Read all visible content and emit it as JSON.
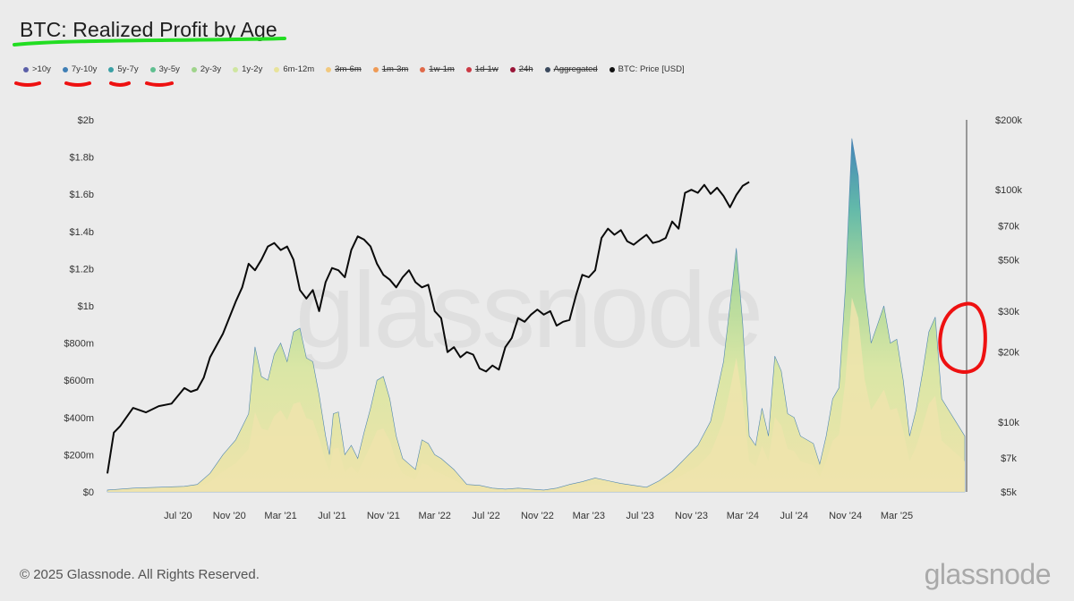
{
  "title": "BTC: Realized Profit by Age",
  "footer": "© 2025 Glassnode. All Rights Reserved.",
  "brand": "glassnode",
  "watermark": "glassnode",
  "legend": [
    {
      "label": ">10y",
      "color": "#5b5fa8",
      "active": true
    },
    {
      "label": "7y-10y",
      "color": "#3f7fb5",
      "active": true
    },
    {
      "label": "5y-7y",
      "color": "#3aa0a5",
      "active": true
    },
    {
      "label": "3y-5y",
      "color": "#5fbf90",
      "active": true
    },
    {
      "label": "2y-3y",
      "color": "#9fd48b",
      "active": true
    },
    {
      "label": "1y-2y",
      "color": "#cfe6a0",
      "active": true
    },
    {
      "label": "6m-12m",
      "color": "#e8e39a",
      "active": true
    },
    {
      "label": "3m-6m",
      "color": "#f2c97e",
      "active": false
    },
    {
      "label": "1m-3m",
      "color": "#ef9a55",
      "active": false
    },
    {
      "label": "1w-1m",
      "color": "#e06a4a",
      "active": false
    },
    {
      "label": "1d-1w",
      "color": "#cc3a45",
      "active": false
    },
    {
      "label": "24h",
      "color": "#9a1538",
      "active": false
    },
    {
      "label": "Aggregated",
      "color": "#3b4a5e",
      "active": false
    },
    {
      "label": "BTC: Price [USD]",
      "color": "#111111",
      "active": true
    }
  ],
  "annotations": {
    "title_underline_color": "#22dd22",
    "legend_underline_color": "#ee1111",
    "circle_color": "#ee1111"
  },
  "chart_data": {
    "type": "area",
    "x_ticks": [
      "Jul '20",
      "Nov '20",
      "Mar '21",
      "Jul '21",
      "Nov '21",
      "Mar '22",
      "Jul '22",
      "Nov '22",
      "Mar '23",
      "Jul '23",
      "Nov '23",
      "Mar '24",
      "Jul '24",
      "Nov '24",
      "Mar '25"
    ],
    "x_tick_pos": [
      5.5,
      9.5,
      13.5,
      17.5,
      21.5,
      25.5,
      29.5,
      33.5,
      37.5,
      41.5,
      45.5,
      49.5,
      53.5,
      57.5,
      61.5
    ],
    "x_range": [
      0,
      66.8
    ],
    "y_left": {
      "ticks": [
        "$0",
        "$200m",
        "$400m",
        "$600m",
        "$800m",
        "$1b",
        "$1.2b",
        "$1.4b",
        "$1.6b",
        "$1.8b",
        "$2b"
      ],
      "range_m": [
        0,
        2000
      ]
    },
    "y_right": {
      "scale": "log",
      "ticks": [
        "$5k",
        "$7k",
        "$10k",
        "$20k",
        "$30k",
        "$50k",
        "$70k",
        "$100k",
        "$200k"
      ],
      "tick_values": [
        5000,
        7000,
        10000,
        20000,
        30000,
        50000,
        70000,
        100000,
        200000
      ],
      "range": [
        5000,
        200000
      ]
    },
    "total_profit_m": [
      [
        0,
        10
      ],
      [
        2,
        20
      ],
      [
        4,
        25
      ],
      [
        6,
        30
      ],
      [
        7,
        40
      ],
      [
        8,
        100
      ],
      [
        9,
        200
      ],
      [
        10,
        280
      ],
      [
        11,
        420
      ],
      [
        11.5,
        780
      ],
      [
        12,
        620
      ],
      [
        12.5,
        600
      ],
      [
        13,
        740
      ],
      [
        13.5,
        800
      ],
      [
        14,
        700
      ],
      [
        14.5,
        860
      ],
      [
        15,
        880
      ],
      [
        15.5,
        720
      ],
      [
        16,
        700
      ],
      [
        16.5,
        520
      ],
      [
        17,
        300
      ],
      [
        17.3,
        200
      ],
      [
        17.6,
        420
      ],
      [
        18,
        430
      ],
      [
        18.5,
        200
      ],
      [
        19,
        250
      ],
      [
        19.5,
        180
      ],
      [
        20,
        320
      ],
      [
        20.5,
        450
      ],
      [
        21,
        600
      ],
      [
        21.5,
        620
      ],
      [
        22,
        500
      ],
      [
        22.5,
        300
      ],
      [
        23,
        180
      ],
      [
        23.5,
        150
      ],
      [
        24,
        120
      ],
      [
        24.5,
        280
      ],
      [
        25,
        260
      ],
      [
        25.5,
        200
      ],
      [
        26,
        180
      ],
      [
        27,
        120
      ],
      [
        28,
        40
      ],
      [
        29,
        35
      ],
      [
        30,
        20
      ],
      [
        31,
        15
      ],
      [
        32,
        20
      ],
      [
        33,
        15
      ],
      [
        34,
        10
      ],
      [
        35,
        20
      ],
      [
        36,
        40
      ],
      [
        37,
        55
      ],
      [
        38,
        75
      ],
      [
        39,
        60
      ],
      [
        40,
        45
      ],
      [
        41,
        35
      ],
      [
        42,
        25
      ],
      [
        43,
        60
      ],
      [
        44,
        110
      ],
      [
        45,
        180
      ],
      [
        46,
        250
      ],
      [
        47,
        380
      ],
      [
        48,
        700
      ],
      [
        48.5,
        1000
      ],
      [
        49,
        1310
      ],
      [
        49.5,
        900
      ],
      [
        50,
        300
      ],
      [
        50.5,
        250
      ],
      [
        51,
        450
      ],
      [
        51.5,
        300
      ],
      [
        52,
        730
      ],
      [
        52.5,
        650
      ],
      [
        53,
        420
      ],
      [
        53.5,
        400
      ],
      [
        54,
        300
      ],
      [
        55,
        260
      ],
      [
        55.5,
        150
      ],
      [
        56,
        300
      ],
      [
        56.5,
        500
      ],
      [
        57,
        560
      ],
      [
        57.5,
        1100
      ],
      [
        58,
        1900
      ],
      [
        58.5,
        1700
      ],
      [
        59,
        1100
      ],
      [
        59.5,
        800
      ],
      [
        60,
        900
      ],
      [
        60.5,
        1000
      ],
      [
        61,
        800
      ],
      [
        61.5,
        820
      ],
      [
        62,
        600
      ],
      [
        62.5,
        300
      ],
      [
        63,
        440
      ],
      [
        63.5,
        640
      ],
      [
        64,
        860
      ],
      [
        64.5,
        940
      ],
      [
        65,
        500
      ],
      [
        66.8,
        300
      ]
    ],
    "btc_price_usd": [
      [
        0,
        6000
      ],
      [
        0.5,
        9000
      ],
      [
        1,
        9600
      ],
      [
        2,
        11500
      ],
      [
        3,
        11000
      ],
      [
        4,
        11700
      ],
      [
        5,
        12000
      ],
      [
        6,
        14000
      ],
      [
        6.5,
        13500
      ],
      [
        7,
        13800
      ],
      [
        7.5,
        15500
      ],
      [
        8,
        19000
      ],
      [
        9,
        24000
      ],
      [
        10,
        33000
      ],
      [
        10.5,
        38000
      ],
      [
        11,
        48000
      ],
      [
        11.5,
        45000
      ],
      [
        12,
        50000
      ],
      [
        12.5,
        57000
      ],
      [
        13,
        59000
      ],
      [
        13.5,
        55000
      ],
      [
        14,
        57000
      ],
      [
        14.5,
        50000
      ],
      [
        15,
        37000
      ],
      [
        15.5,
        34000
      ],
      [
        16,
        37000
      ],
      [
        16.5,
        30000
      ],
      [
        17,
        40000
      ],
      [
        17.5,
        46000
      ],
      [
        18,
        45000
      ],
      [
        18.5,
        42000
      ],
      [
        19,
        55000
      ],
      [
        19.5,
        63000
      ],
      [
        20,
        61000
      ],
      [
        20.5,
        57000
      ],
      [
        21,
        48000
      ],
      [
        21.5,
        43000
      ],
      [
        22,
        41000
      ],
      [
        22.5,
        38000
      ],
      [
        23,
        42000
      ],
      [
        23.5,
        45000
      ],
      [
        24,
        40000
      ],
      [
        24.5,
        38000
      ],
      [
        25,
        39000
      ],
      [
        25.5,
        30000
      ],
      [
        26,
        28000
      ],
      [
        26.5,
        20000
      ],
      [
        27,
        21000
      ],
      [
        27.5,
        19000
      ],
      [
        28,
        20000
      ],
      [
        28.5,
        19500
      ],
      [
        29,
        17000
      ],
      [
        29.5,
        16500
      ],
      [
        30,
        17500
      ],
      [
        30.5,
        16800
      ],
      [
        31,
        21000
      ],
      [
        31.5,
        23000
      ],
      [
        32,
        28000
      ],
      [
        32.5,
        27000
      ],
      [
        33,
        29000
      ],
      [
        33.5,
        30500
      ],
      [
        34,
        29000
      ],
      [
        34.5,
        30000
      ],
      [
        35,
        26000
      ],
      [
        35.5,
        27000
      ],
      [
        36,
        27500
      ],
      [
        36.5,
        35000
      ],
      [
        37,
        43000
      ],
      [
        37.5,
        42000
      ],
      [
        38,
        45000
      ],
      [
        38.5,
        62000
      ],
      [
        39,
        68000
      ],
      [
        39.5,
        64000
      ],
      [
        40,
        67000
      ],
      [
        40.5,
        60000
      ],
      [
        41,
        58000
      ],
      [
        41.5,
        61000
      ],
      [
        42,
        64000
      ],
      [
        42.5,
        59000
      ],
      [
        43,
        60000
      ],
      [
        43.5,
        62000
      ],
      [
        44,
        73000
      ],
      [
        44.5,
        68000
      ],
      [
        45,
        97000
      ],
      [
        45.5,
        100000
      ],
      [
        46,
        97000
      ],
      [
        46.5,
        105000
      ],
      [
        47,
        96000
      ],
      [
        47.5,
        102000
      ],
      [
        48,
        94000
      ],
      [
        48.5,
        84000
      ],
      [
        49,
        95000
      ],
      [
        49.5,
        104000
      ],
      [
        50,
        108000
      ]
    ]
  }
}
